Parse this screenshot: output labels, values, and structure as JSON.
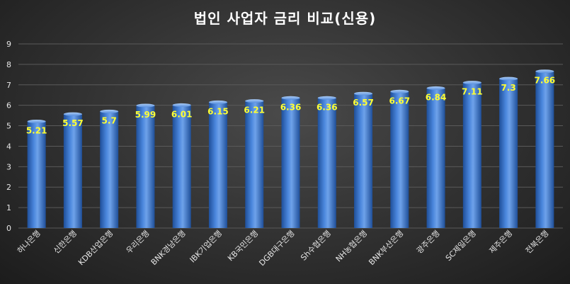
{
  "chart_data": {
    "type": "bar",
    "title": "법인 사업자 금리 비교(신용)",
    "categories": [
      "하나은행",
      "신한은행",
      "KDB산업은행",
      "우리은행",
      "BNK경남은행",
      "IBK기업은행",
      "KB국민은행",
      "DGB대구은행",
      "Sh수협은행",
      "NH농협은행",
      "BNK부산은행",
      "광주은행",
      "SC제일은행",
      "제주은행",
      "전북은행"
    ],
    "values": [
      5.21,
      5.57,
      5.7,
      5.99,
      6.01,
      6.15,
      6.21,
      6.36,
      6.36,
      6.57,
      6.67,
      6.84,
      7.11,
      7.3,
      7.66
    ],
    "value_labels": [
      "5.21",
      "5.57",
      "5.7",
      "5.99",
      "6.01",
      "6.15",
      "6.21",
      "6.36",
      "6.36",
      "6.57",
      "6.67",
      "6.84",
      "7.11",
      "7.3",
      "7.66"
    ],
    "yticks": [
      "0",
      "1",
      "2",
      "3",
      "4",
      "5",
      "6",
      "7",
      "8",
      "9"
    ],
    "ylim": [
      0,
      9
    ],
    "grid": true,
    "colors": {
      "bar": "#3a72c8",
      "bar_light": "#7fb0ee",
      "bar_dark": "#1f4f99",
      "data_label": "#ffff33",
      "background": "#333333"
    }
  }
}
